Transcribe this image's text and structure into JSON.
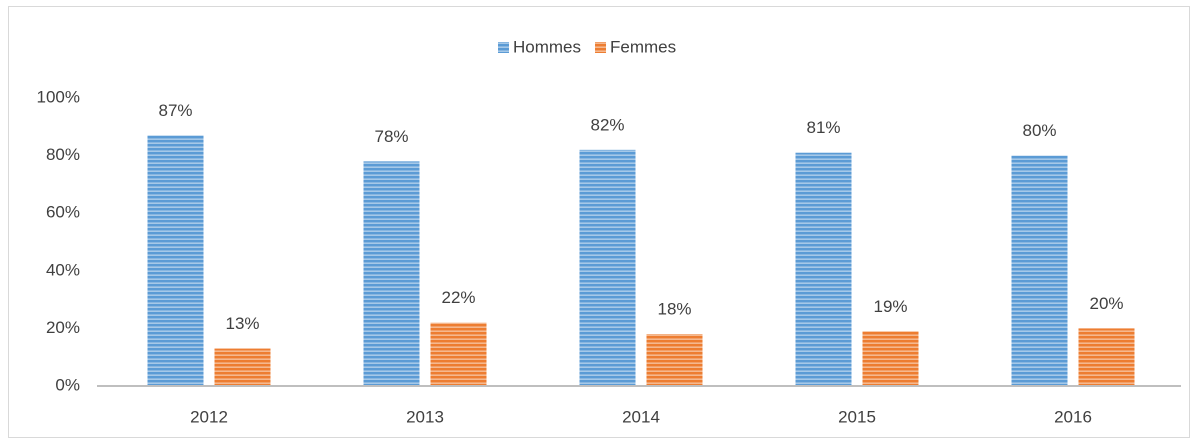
{
  "chart_data": {
    "type": "bar",
    "categories": [
      "2012",
      "2013",
      "2014",
      "2015",
      "2016"
    ],
    "series": [
      {
        "name": "Hommes",
        "color": "#5b9bd5",
        "values": [
          87,
          78,
          82,
          81,
          80
        ],
        "value_labels": [
          "87%",
          "78%",
          "82%",
          "81%",
          "80%"
        ]
      },
      {
        "name": "Femmes",
        "color": "#ed7d31",
        "values": [
          13,
          22,
          18,
          19,
          20
        ],
        "value_labels": [
          "13%",
          "22%",
          "18%",
          "19%",
          "20%"
        ]
      }
    ],
    "ylim": [
      0,
      100
    ],
    "yticks": [
      {
        "value": 0,
        "label": "0%"
      },
      {
        "value": 20,
        "label": "20%"
      },
      {
        "value": 40,
        "label": "40%"
      },
      {
        "value": 60,
        "label": "60%"
      },
      {
        "value": 80,
        "label": "80%"
      },
      {
        "value": 100,
        "label": "100%"
      }
    ],
    "grid": false,
    "legend": "top"
  }
}
